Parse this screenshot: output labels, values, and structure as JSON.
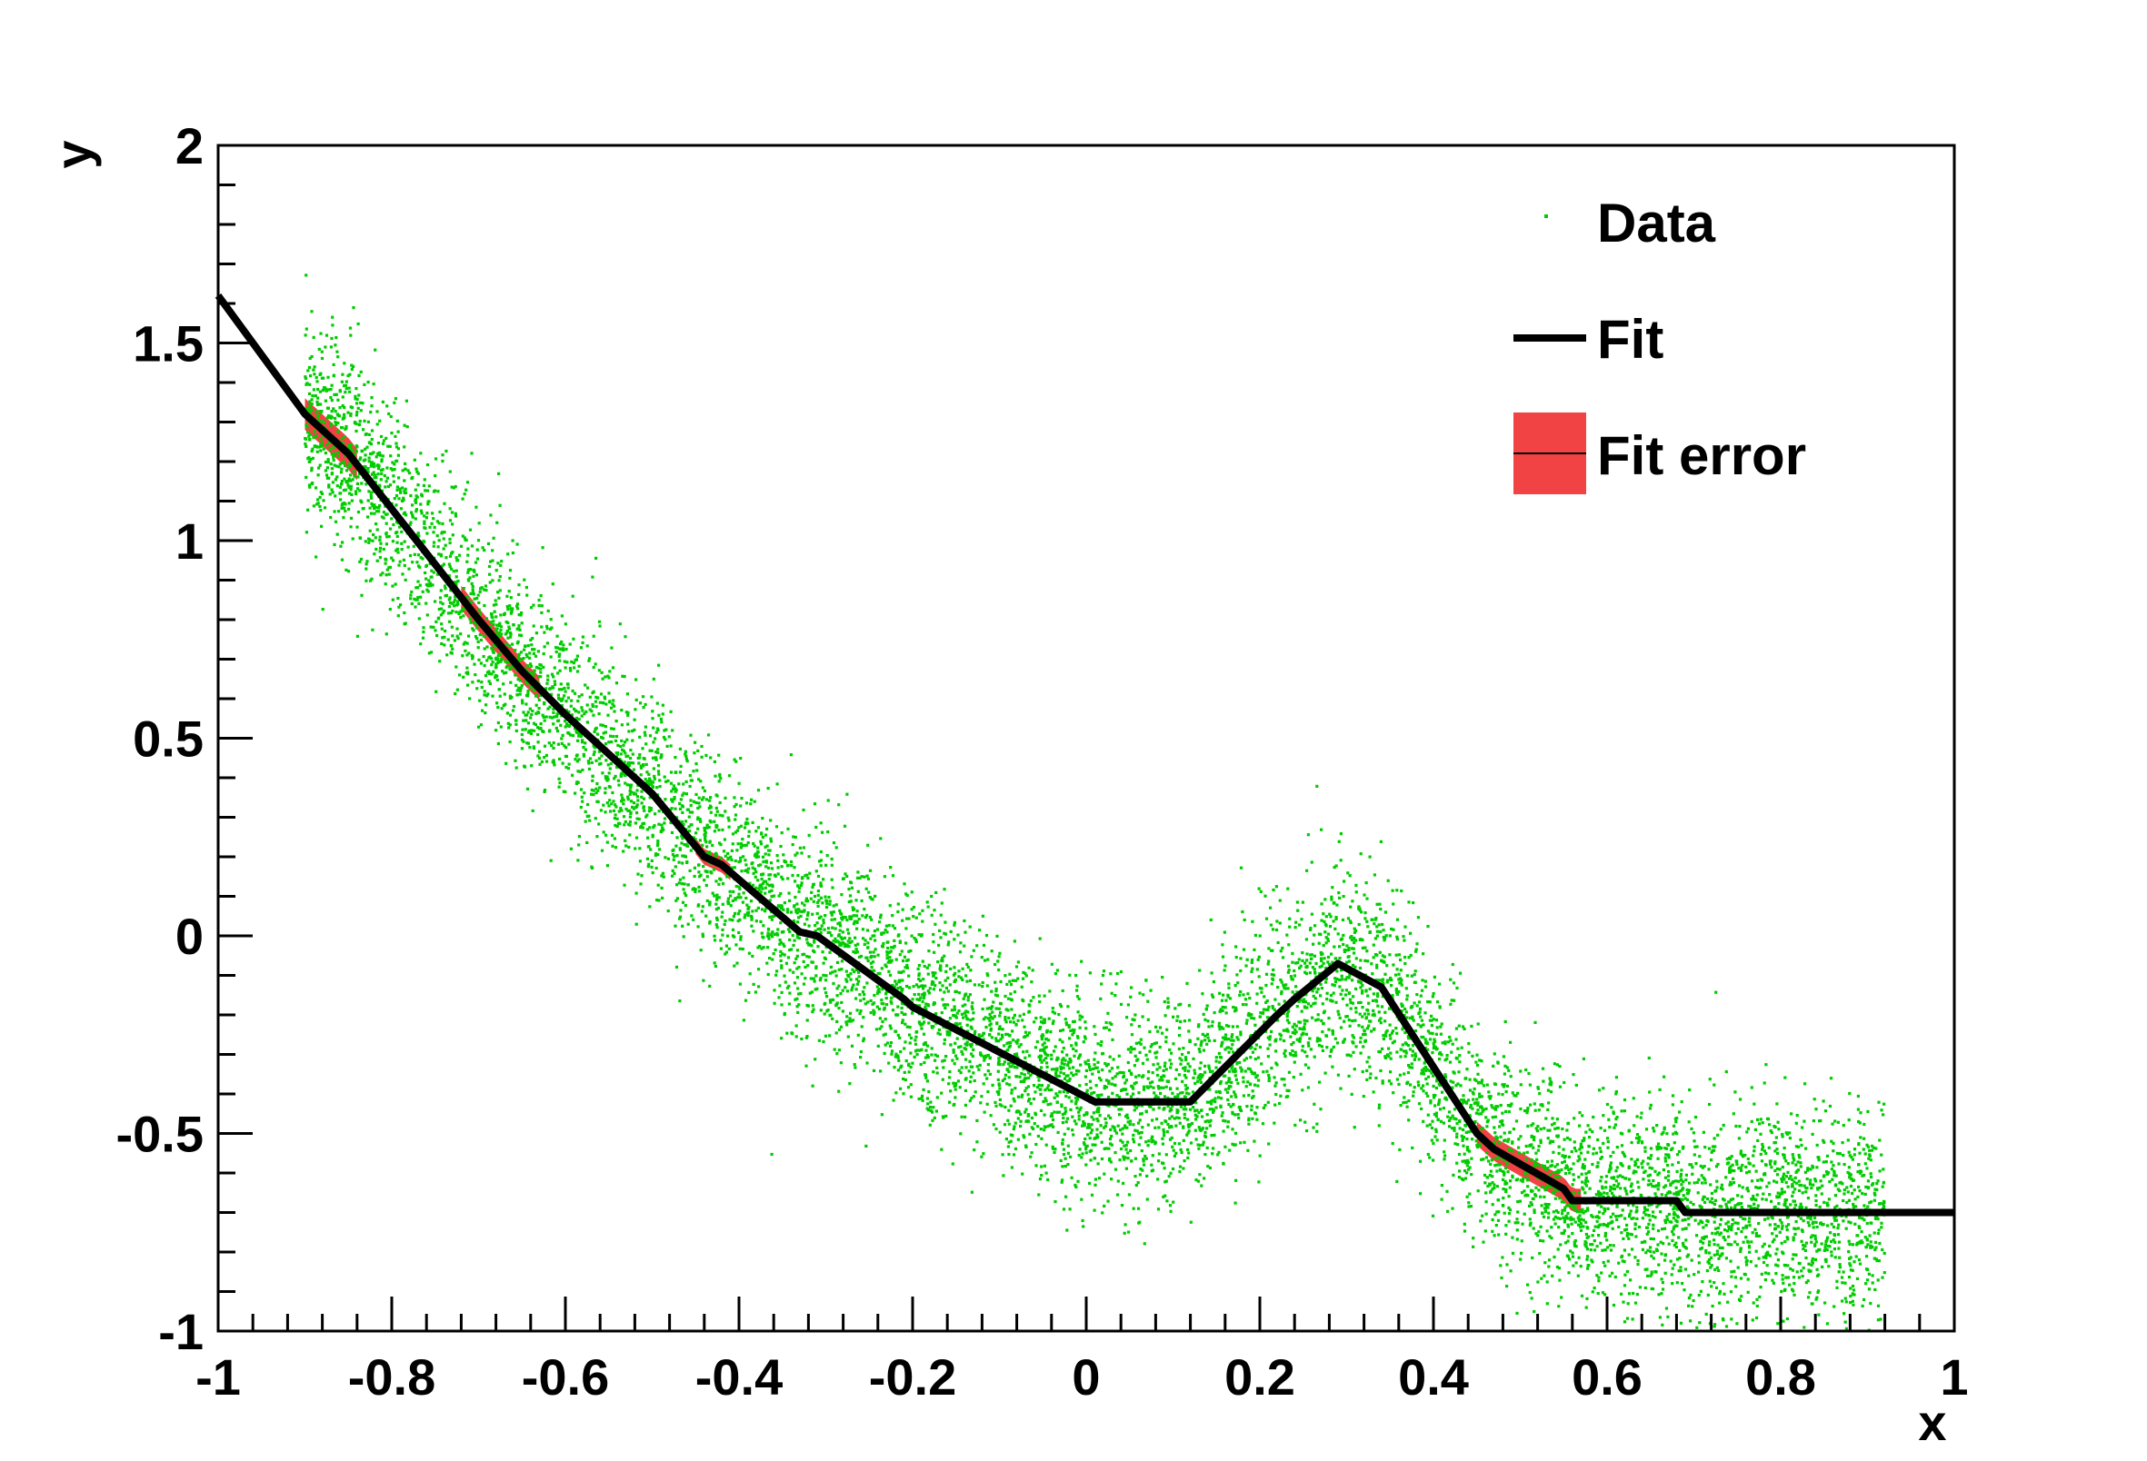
{
  "chart_data": {
    "type": "scatter",
    "title": "",
    "xlabel": "x",
    "ylabel": "y",
    "xlim": [
      -1,
      1
    ],
    "ylim": [
      -1,
      2
    ],
    "x_ticks": [
      -1,
      -0.8,
      -0.6,
      -0.4,
      -0.2,
      0,
      0.2,
      0.4,
      0.6,
      0.8,
      1
    ],
    "x_tick_labels": [
      "-1",
      "-0.8",
      "-0.6",
      "-0.4",
      "-0.2",
      "0",
      "0.2",
      "0.4",
      "0.6",
      "0.8",
      "1"
    ],
    "y_ticks": [
      -1,
      -0.5,
      0,
      0.5,
      1,
      1.5,
      2
    ],
    "y_tick_labels": [
      "-1",
      "-0.5",
      "0",
      "0.5",
      "1",
      "1.5",
      "2"
    ],
    "grid": false,
    "legend_position": "top-right",
    "colors": {
      "data": "#00cc00",
      "fit": "#000000",
      "fit_error": "#ee2222"
    },
    "series": [
      {
        "name": "Data",
        "kind": "points",
        "x_range": [
          -0.9,
          0.92
        ],
        "noise_sigma": 0.13,
        "description_values": "scatter cloud following the fit curve"
      },
      {
        "name": "Fit",
        "kind": "line",
        "x": [
          -1.0,
          -0.9,
          -0.85,
          -0.8,
          -0.7,
          -0.65,
          -0.6,
          -0.5,
          -0.44,
          -0.42,
          -0.33,
          -0.31,
          -0.21,
          -0.2,
          0.01,
          0.12,
          0.22,
          0.24,
          0.29,
          0.34,
          0.45,
          0.47,
          0.55,
          0.56,
          0.68,
          0.69,
          1.0
        ],
        "y": [
          1.62,
          1.32,
          1.22,
          1.08,
          0.8,
          0.67,
          0.56,
          0.36,
          0.2,
          0.18,
          0.01,
          0.0,
          -0.16,
          -0.18,
          -0.42,
          -0.42,
          -0.2,
          -0.16,
          -0.07,
          -0.13,
          -0.5,
          -0.54,
          -0.64,
          -0.67,
          -0.67,
          -0.7,
          -0.7
        ]
      },
      {
        "name": "Fit error",
        "kind": "band",
        "segments": [
          {
            "x": [
              -0.9,
              -0.84
            ],
            "half_width": 0.04
          },
          {
            "x": [
              -0.72,
              -0.63
            ],
            "half_width": 0.03
          },
          {
            "x": [
              -0.45,
              -0.41
            ],
            "half_width": 0.02
          },
          {
            "x": [
              0.45,
              0.57
            ],
            "half_width": 0.03
          }
        ]
      }
    ]
  }
}
